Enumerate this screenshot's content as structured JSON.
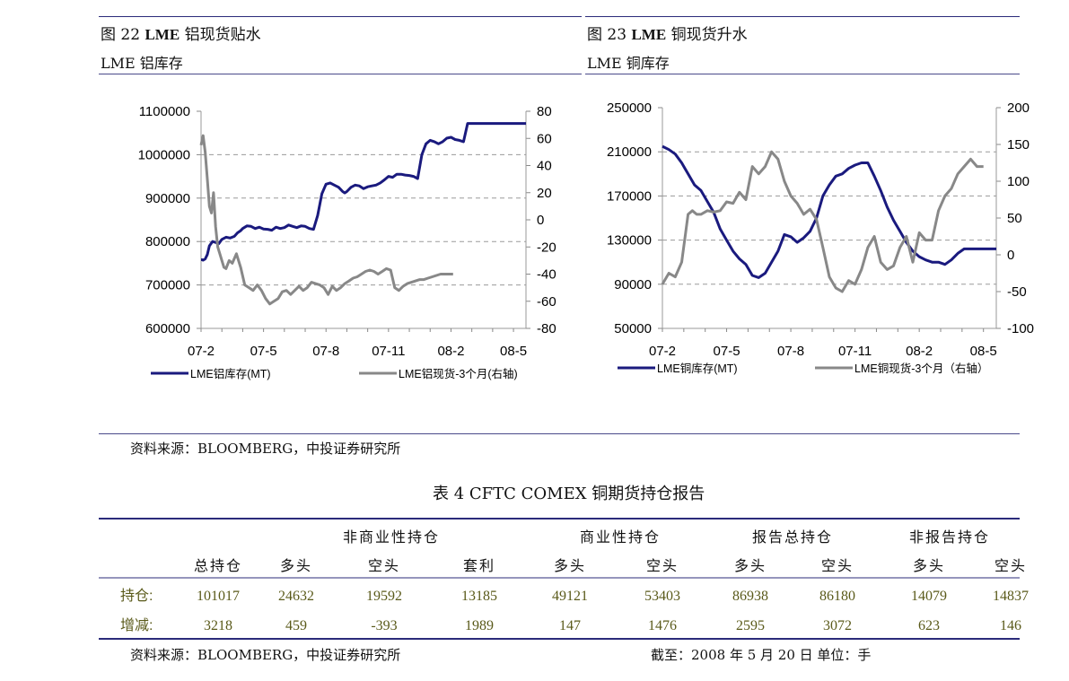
{
  "figures": {
    "left": {
      "title": "图 22 LME 铝现货贴水",
      "title_prefix": "图 22 ",
      "title_bold": "LME",
      "title_suffix": " 铝现货贴水",
      "subtitle": "LME 铝库存"
    },
    "right": {
      "title": "图 23 LME 铜现货升水",
      "title_prefix": "图 23 ",
      "title_bold": "LME",
      "title_suffix": " 铜现货升水",
      "subtitle": "LME 铜库存"
    },
    "source": "资料来源：BLOOMBERG，中投证券研究所"
  },
  "chart_data": [
    {
      "type": "line",
      "x_tick_labels": [
        "07-2",
        "07-5",
        "07-8",
        "07-11",
        "08-2",
        "08-5"
      ],
      "ylim_left": [
        600000,
        1100000
      ],
      "yticks_left": [
        "1100000",
        "1000000",
        "900000",
        "800000",
        "700000",
        "600000"
      ],
      "ylim_right": [
        -80,
        80
      ],
      "yticks_right": [
        "80",
        "60",
        "40",
        "20",
        "0",
        "-20",
        "-40",
        "-60",
        "-80"
      ],
      "grid": true,
      "legend_position": "bottom",
      "series": [
        {
          "name": "LME铝库存(MT)",
          "axis": "left",
          "color": "#1a1a7e",
          "x": [
            0,
            0.05,
            0.1,
            0.2,
            0.3,
            0.4,
            0.55,
            0.7,
            0.85,
            1.0,
            1.2,
            1.4,
            1.6,
            1.75,
            1.9,
            2.0,
            2.2,
            2.4,
            2.6,
            2.8,
            3.0,
            3.2,
            3.4,
            3.6,
            3.8,
            4.0,
            4.2,
            4.4,
            4.6,
            4.8,
            5.0,
            5.2,
            5.4,
            5.6,
            5.8,
            6.0,
            6.2,
            6.4,
            6.6,
            6.8,
            6.9,
            7.0,
            7.2,
            7.4,
            7.6,
            7.8,
            8.0,
            8.2,
            8.4,
            8.6,
            8.8,
            9.0,
            9.2,
            9.4,
            9.6,
            9.8,
            10.0,
            10.2,
            10.4,
            10.6,
            10.8,
            11.0,
            11.2,
            11.4,
            11.6,
            11.8,
            12.0,
            12.2,
            12.4,
            12.6,
            12.8,
            13.0,
            13.2,
            13.4,
            13.6,
            13.8,
            14.0,
            14.2,
            14.4,
            14.6,
            14.8,
            15.0,
            15.2,
            15.4,
            15.5,
            15.6
          ],
          "values": [
            758000,
            758000,
            757000,
            760000,
            770000,
            790000,
            800000,
            798000,
            795000,
            805000,
            810000,
            808000,
            812000,
            820000,
            825000,
            830000,
            836000,
            835000,
            830000,
            833000,
            829000,
            828000,
            826000,
            833000,
            830000,
            832000,
            838000,
            835000,
            832000,
            836000,
            835000,
            830000,
            828000,
            860000,
            910000,
            932000,
            935000,
            930000,
            925000,
            915000,
            912000,
            915000,
            925000,
            930000,
            928000,
            922000,
            926000,
            928000,
            930000,
            935000,
            942000,
            950000,
            948000,
            955000,
            955000,
            953000,
            952000,
            950000,
            945000,
            1000000,
            1025000,
            1033000,
            1030000,
            1025000,
            1030000,
            1038000,
            1040000,
            1035000,
            1033000,
            1030000,
            1072000,
            1072000,
            1072000,
            1072000,
            1072000,
            1072000,
            1072000,
            1072000,
            1072000,
            1072000,
            1072000,
            1072000,
            1072000,
            1072000,
            1072000,
            1072000
          ]
        },
        {
          "name": "LME铝现货-3个月(右轴)",
          "axis": "right",
          "color": "#888888",
          "x": [
            0,
            0.1,
            0.2,
            0.3,
            0.4,
            0.5,
            0.6,
            0.7,
            0.8,
            0.9,
            1.0,
            1.1,
            1.2,
            1.35,
            1.5,
            1.7,
            1.9,
            2.1,
            2.3,
            2.5,
            2.7,
            2.9,
            3.1,
            3.3,
            3.5,
            3.7,
            3.9,
            4.1,
            4.3,
            4.5,
            4.7,
            4.9,
            5.1,
            5.3,
            5.5,
            5.7,
            5.9,
            6.1,
            6.3,
            6.5,
            6.7,
            6.9,
            7.1,
            7.3,
            7.5,
            7.7,
            7.9,
            8.1,
            8.3,
            8.5,
            8.7,
            8.9,
            9.1,
            9.3,
            9.5,
            9.7,
            9.9,
            10.1,
            10.3,
            10.5,
            10.7,
            10.9,
            11.1,
            11.3,
            11.5,
            11.7,
            11.9,
            12.1
          ],
          "values": [
            55,
            62,
            50,
            30,
            10,
            5,
            20,
            -5,
            -20,
            -25,
            -30,
            -35,
            -36,
            -30,
            -32,
            -25,
            -35,
            -48,
            -50,
            -52,
            -48,
            -52,
            -58,
            -62,
            -60,
            -58,
            -53,
            -52,
            -55,
            -52,
            -49,
            -52,
            -50,
            -46,
            -47,
            -48,
            -50,
            -55,
            -49,
            -52,
            -50,
            -47,
            -45,
            -43,
            -42,
            -40,
            -38,
            -37,
            -38,
            -40,
            -38,
            -36,
            -37,
            -50,
            -52,
            -49,
            -47,
            -46,
            -45,
            -44,
            -44,
            -43,
            -42,
            -41,
            -40,
            -40,
            -40,
            -40
          ]
        }
      ]
    },
    {
      "type": "line",
      "x_tick_labels": [
        "07-2",
        "07-5",
        "07-8",
        "07-11",
        "08-2",
        "08-5"
      ],
      "ylim_left": [
        50000,
        250000
      ],
      "yticks_left": [
        "250000",
        "210000",
        "170000",
        "130000",
        "90000",
        "50000"
      ],
      "ylim_right": [
        -100,
        200
      ],
      "yticks_right": [
        "200",
        "150",
        "100",
        "50",
        "0",
        "-50",
        "-100"
      ],
      "grid": true,
      "legend_position": "bottom",
      "series": [
        {
          "name": "LME铜库存(MT)",
          "axis": "left",
          "color": "#1a1a7e",
          "x": [
            0,
            0.3,
            0.6,
            0.9,
            1.2,
            1.5,
            1.8,
            2.1,
            2.4,
            2.7,
            3.0,
            3.3,
            3.6,
            3.9,
            4.2,
            4.5,
            4.8,
            5.1,
            5.4,
            5.7,
            6.0,
            6.3,
            6.6,
            6.9,
            7.2,
            7.5,
            7.8,
            8.1,
            8.4,
            8.7,
            9.0,
            9.3,
            9.6,
            9.9,
            10.2,
            10.5,
            10.8,
            11.1,
            11.4,
            11.7,
            12.0,
            12.3,
            12.6,
            12.9,
            13.2,
            13.5,
            13.8,
            14.1,
            14.4,
            14.7,
            15.0,
            15.3,
            15.6
          ],
          "values": [
            215000,
            212000,
            208000,
            200000,
            190000,
            180000,
            175000,
            165000,
            155000,
            140000,
            130000,
            120000,
            113000,
            108000,
            98000,
            96000,
            100000,
            110000,
            120000,
            135000,
            133000,
            128000,
            132000,
            138000,
            150000,
            170000,
            180000,
            188000,
            190000,
            195000,
            198000,
            200000,
            200000,
            188000,
            175000,
            160000,
            148000,
            138000,
            128000,
            120000,
            115000,
            112000,
            110000,
            110000,
            108000,
            112000,
            118000,
            122000,
            122000,
            122000,
            122000,
            122000,
            122000
          ]
        },
        {
          "name": "LME铜现货-3个月（右轴）",
          "axis": "right",
          "color": "#888888",
          "x": [
            0,
            0.3,
            0.6,
            0.9,
            1.2,
            1.4,
            1.6,
            1.8,
            2.1,
            2.4,
            2.7,
            3.0,
            3.3,
            3.6,
            3.9,
            4.2,
            4.5,
            4.8,
            5.1,
            5.4,
            5.7,
            6.0,
            6.3,
            6.6,
            6.9,
            7.2,
            7.5,
            7.8,
            8.1,
            8.4,
            8.7,
            9.0,
            9.3,
            9.6,
            9.9,
            10.2,
            10.5,
            10.8,
            11.1,
            11.4,
            11.7,
            12.0,
            12.3,
            12.6,
            12.9,
            13.2,
            13.5,
            13.8,
            14.1,
            14.4,
            14.7,
            15.0
          ],
          "values": [
            -40,
            -25,
            -30,
            -10,
            55,
            60,
            55,
            55,
            60,
            58,
            60,
            72,
            70,
            85,
            75,
            120,
            110,
            120,
            140,
            130,
            100,
            80,
            70,
            55,
            62,
            48,
            10,
            -30,
            -45,
            -50,
            -35,
            -40,
            -20,
            10,
            25,
            -10,
            -20,
            -15,
            10,
            25,
            -10,
            30,
            20,
            20,
            60,
            80,
            90,
            110,
            120,
            130,
            120,
            120
          ]
        }
      ]
    }
  ],
  "table": {
    "title": "表 4 CFTC COMEX 铜期货持仓报告",
    "groups": [
      "非商业性持仓",
      "商业性持仓",
      "报告总持仓",
      "非报告持仓"
    ],
    "subheaders": [
      "总持仓",
      "多头",
      "空头",
      "套利",
      "多头",
      "空头",
      "多头",
      "空头",
      "多头",
      "空头"
    ],
    "rows": [
      {
        "label": "持仓:",
        "cells": [
          "101017",
          "24632",
          "19592",
          "13185",
          "49121",
          "53403",
          "86938",
          "86180",
          "14079",
          "14837"
        ]
      },
      {
        "label": "增减:",
        "cells": [
          "3218",
          "459",
          "-393",
          "1989",
          "147",
          "1476",
          "2595",
          "3072",
          "623",
          "146"
        ]
      }
    ],
    "source": "资料来源：BLOOMBERG，中投证券研究所",
    "note": "截至：2008 年 5 月 20 日  单位：手"
  }
}
